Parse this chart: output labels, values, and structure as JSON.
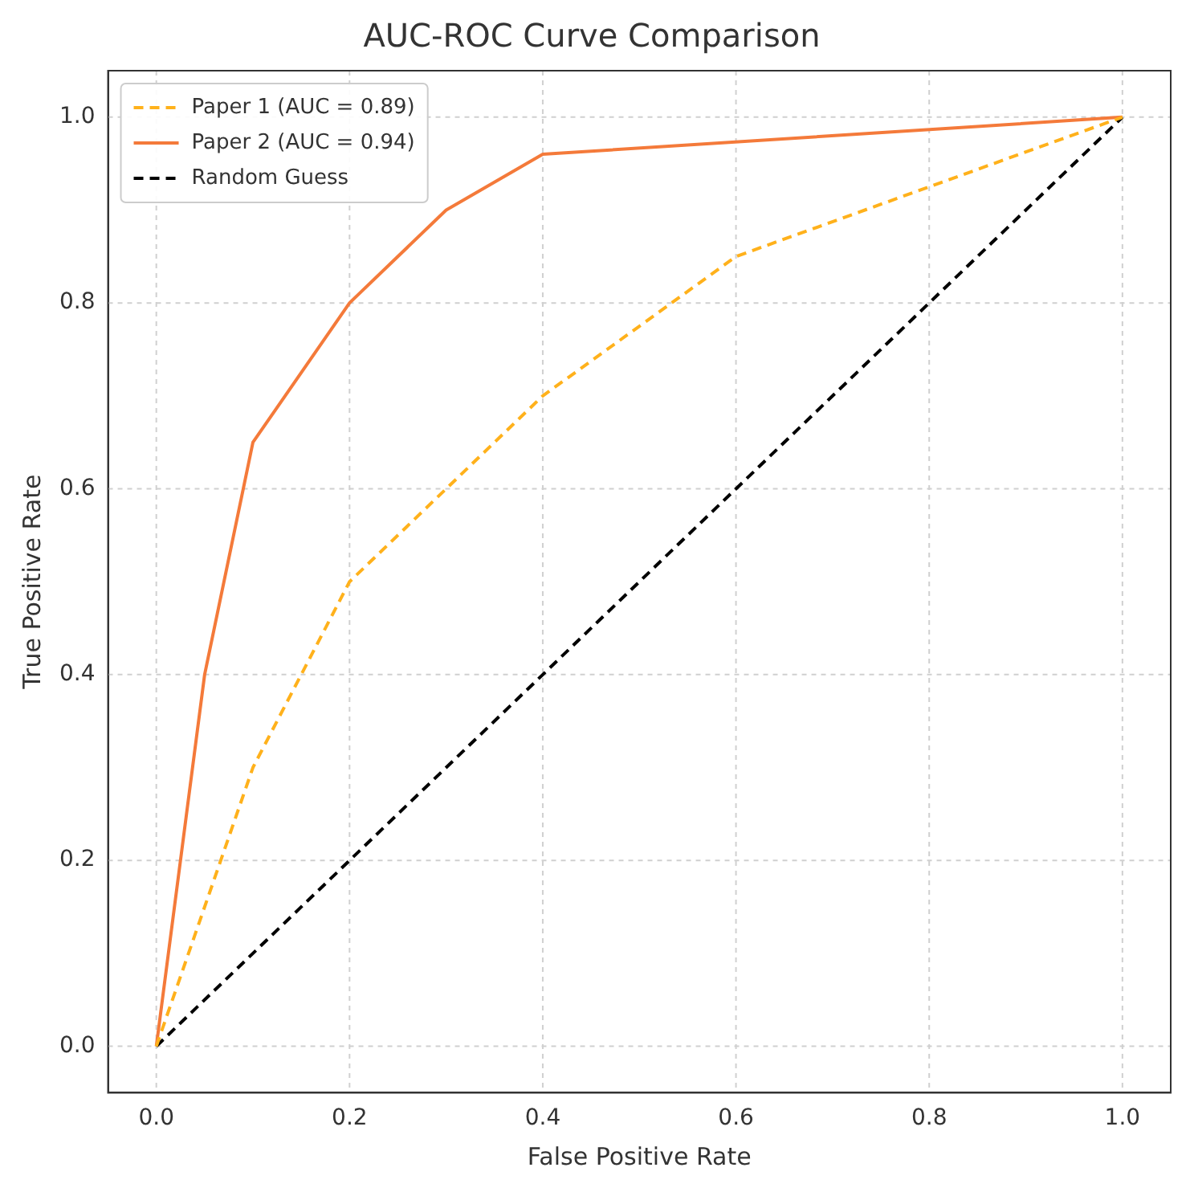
{
  "chart_data": {
    "type": "line",
    "title": "AUC-ROC Curve Comparison",
    "xlabel": "False Positive Rate",
    "ylabel": "True Positive Rate",
    "xlim": [
      -0.05,
      1.05
    ],
    "ylim": [
      -0.05,
      1.05
    ],
    "xticks": [
      {
        "value": 0,
        "label": "0.0"
      },
      {
        "value": 0.2,
        "label": "0.2"
      },
      {
        "value": 0.4,
        "label": "0.4"
      },
      {
        "value": 0.6,
        "label": "0.6"
      },
      {
        "value": 0.8,
        "label": "0.8"
      },
      {
        "value": 1,
        "label": "1.0"
      }
    ],
    "yticks": [
      {
        "value": 0,
        "label": "0.0"
      },
      {
        "value": 0.2,
        "label": "0.2"
      },
      {
        "value": 0.4,
        "label": "0.4"
      },
      {
        "value": 0.6,
        "label": "0.6"
      },
      {
        "value": 0.8,
        "label": "0.8"
      },
      {
        "value": 1,
        "label": "1.0"
      }
    ],
    "grid": true,
    "legend": "top left",
    "marker": "none",
    "series": [
      {
        "name": "Paper 1 (AUC = 0.89)",
        "color": "#ffb11b",
        "line_style": "dashed",
        "x": [
          0,
          0.1,
          0.2,
          0.4,
          0.6,
          1
        ],
        "values": [
          0,
          0.3,
          0.5,
          0.7,
          0.85,
          1
        ]
      },
      {
        "name": "Paper 2 (AUC = 0.94)",
        "color": "#f47a3a",
        "line_style": "solid",
        "x": [
          0,
          0.05,
          0.1,
          0.2,
          0.3,
          0.4,
          1
        ],
        "values": [
          0,
          0.4,
          0.65,
          0.8,
          0.9,
          0.96,
          1
        ]
      },
      {
        "name": "Random Guess",
        "color": "#000000",
        "line_style": "dashed",
        "x": [
          0,
          1
        ],
        "values": [
          0,
          1
        ]
      }
    ]
  }
}
